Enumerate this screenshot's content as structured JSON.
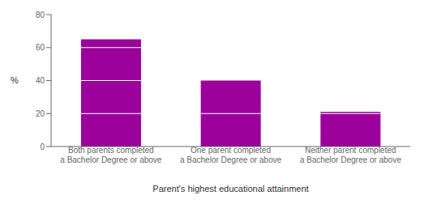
{
  "chart_data": {
    "type": "bar",
    "categories": [
      "Both parents completed\na Bachelor Degree or above",
      "One parent completed\na Bachelor Degree or above",
      "Neither parent completed\na Bachelor Degree or above"
    ],
    "values": [
      65,
      40,
      21
    ],
    "segment_lines": [
      20,
      40,
      60
    ],
    "color": "#9B009B",
    "xlabel": "Parent's highest educational attainment",
    "ylabel": "%",
    "ylim": [
      0,
      80
    ],
    "yticks": [
      0,
      20,
      40,
      60,
      80
    ],
    "grid": false
  }
}
